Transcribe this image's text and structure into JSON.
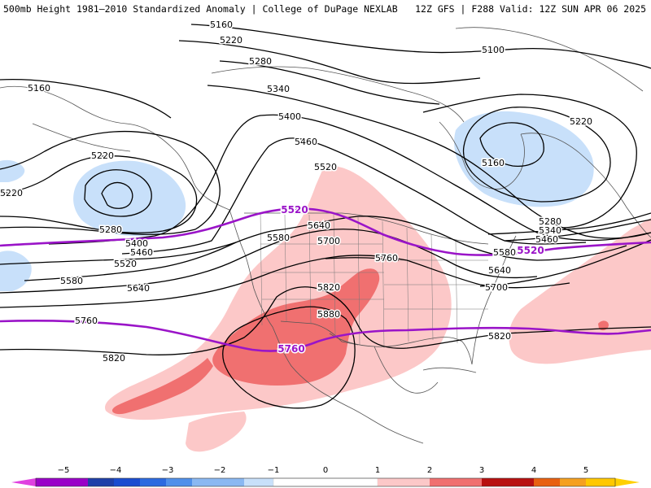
{
  "header": {
    "left": "500mb Height 1981–2010 Standardized Anomaly | College of DuPage NEXLAB",
    "right": "12Z GFS | F288 Valid: 12Z SUN APR 06 2025"
  },
  "contour_labels": [
    {
      "text": "5160"
    },
    {
      "text": "5220"
    },
    {
      "text": "5280"
    },
    {
      "text": "5340"
    },
    {
      "text": "5400"
    },
    {
      "text": "5460"
    },
    {
      "text": "5520"
    },
    {
      "text": "5580"
    },
    {
      "text": "5640"
    },
    {
      "text": "5700"
    },
    {
      "text": "5760"
    },
    {
      "text": "5820"
    },
    {
      "text": "5880"
    },
    {
      "text": "5100"
    },
    {
      "text": "5160"
    },
    {
      "text": "5220"
    },
    {
      "text": "5160"
    },
    {
      "text": "5220"
    },
    {
      "text": "5220"
    },
    {
      "text": "5280"
    },
    {
      "text": "5400"
    },
    {
      "text": "5460"
    },
    {
      "text": "5520"
    },
    {
      "text": "5580"
    },
    {
      "text": "5640"
    },
    {
      "text": "5760"
    },
    {
      "text": "5820"
    },
    {
      "text": "5280"
    },
    {
      "text": "5340"
    },
    {
      "text": "5460"
    },
    {
      "text": "5580"
    },
    {
      "text": "5640"
    },
    {
      "text": "5700"
    },
    {
      "text": "5820"
    }
  ],
  "highlight_labels": {
    "north": "5520",
    "north_east": "5520",
    "south": "5760"
  },
  "colorbar": {
    "ticks": [
      "−5",
      "−4",
      "−3",
      "−2",
      "−1",
      "0",
      "1",
      "2",
      "3",
      "4",
      "5"
    ],
    "colors": [
      "#cc33cc",
      "#8a00b8",
      "#1f3fa8",
      "#2c5fd8",
      "#6ea0ee",
      "#c8e0fa",
      "#ffffff",
      "#ffffff",
      "#fbc8c8",
      "#f07070",
      "#c01010",
      "#8b0000",
      "#f57f17",
      "#ffc000"
    ]
  },
  "colors": {
    "neg_anomaly": "#c8e0fa",
    "pos_anomaly_1": "#fcc8c8",
    "pos_anomaly_2": "#f07070",
    "highlight_contour": "#9a14c8"
  }
}
